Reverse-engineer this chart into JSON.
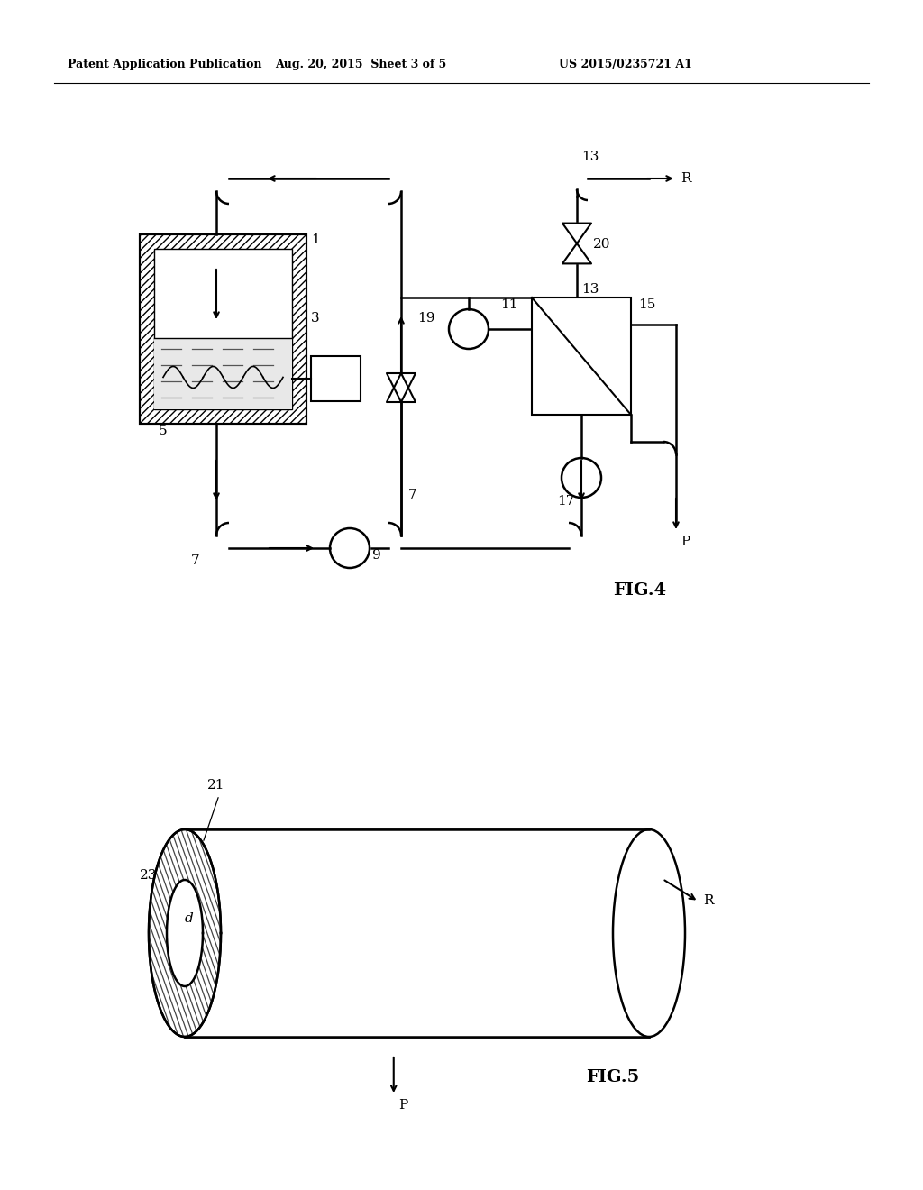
{
  "header_left": "Patent Application Publication",
  "header_center": "Aug. 20, 2015  Sheet 3 of 5",
  "header_right": "US 2015/0235721 A1",
  "fig4_label": "FIG.4",
  "fig5_label": "FIG.5",
  "bg_color": "#ffffff",
  "line_color": "#000000",
  "lw": 1.8,
  "corner_r": 12
}
